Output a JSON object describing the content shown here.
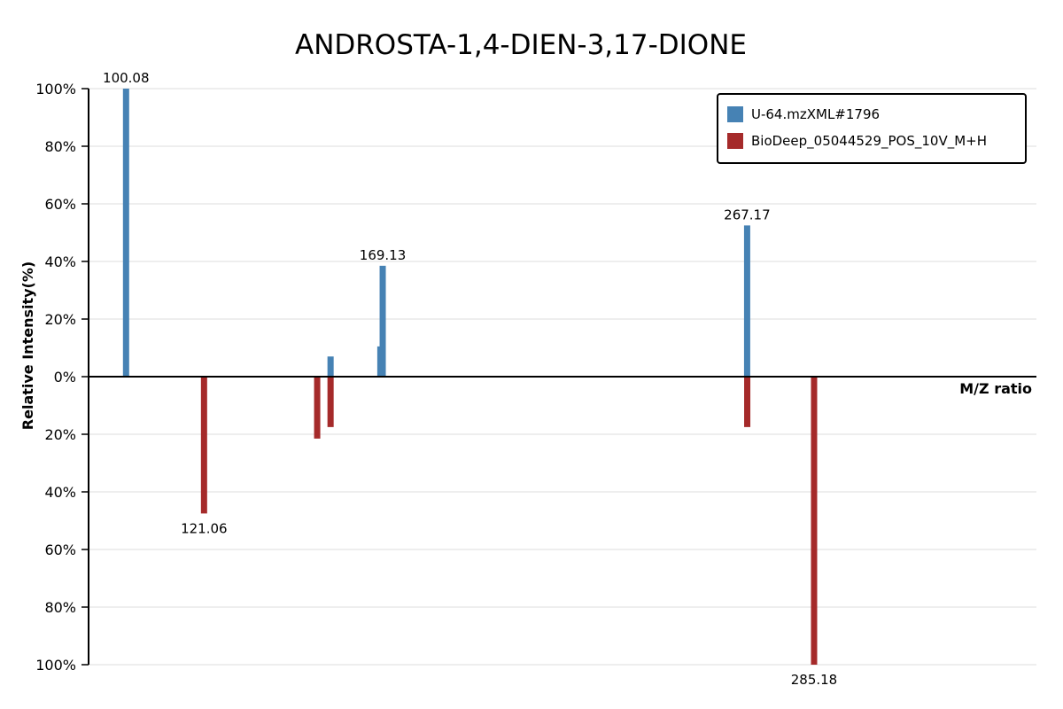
{
  "chart_data": {
    "type": "bar",
    "title": "ANDROSTA-1,4-DIEN-3,17-DIONE",
    "xlabel": "M/Z ratio",
    "ylabel": "Relative Intensity(%)",
    "xlim": [
      90,
      345
    ],
    "ylim": [
      -100,
      100
    ],
    "y_ticks": [
      {
        "value": 100,
        "label": "100%"
      },
      {
        "value": 80,
        "label": "80%"
      },
      {
        "value": 60,
        "label": "60%"
      },
      {
        "value": 40,
        "label": "40%"
      },
      {
        "value": 20,
        "label": "20%"
      },
      {
        "value": 0,
        "label": "0%"
      },
      {
        "value": -20,
        "label": "20%"
      },
      {
        "value": -40,
        "label": "40%"
      },
      {
        "value": -60,
        "label": "60%"
      },
      {
        "value": -80,
        "label": "80%"
      },
      {
        "value": -100,
        "label": "100%"
      }
    ],
    "grid": true,
    "legend_position": "top-right",
    "series": [
      {
        "name": "U-64.mzXML#1796",
        "color": "#4682b4",
        "direction": "up",
        "peaks": [
          {
            "mz": 100.08,
            "intensity": 100,
            "label": "100.08"
          },
          {
            "mz": 155.1,
            "intensity": 7,
            "label": ""
          },
          {
            "mz": 168.5,
            "intensity": 10.5,
            "label": ""
          },
          {
            "mz": 169.13,
            "intensity": 38.5,
            "label": "169.13"
          },
          {
            "mz": 267.17,
            "intensity": 52.5,
            "label": "267.17"
          }
        ]
      },
      {
        "name": "BioDeep_05044529_POS_10V_M+H",
        "color": "#a52a2a",
        "direction": "down",
        "peaks": [
          {
            "mz": 121.06,
            "intensity": 47.5,
            "label": "121.06"
          },
          {
            "mz": 151.5,
            "intensity": 21.5,
            "label": ""
          },
          {
            "mz": 155.1,
            "intensity": 17.5,
            "label": ""
          },
          {
            "mz": 267.2,
            "intensity": 17.5,
            "label": ""
          },
          {
            "mz": 285.18,
            "intensity": 100,
            "label": "285.18"
          }
        ]
      }
    ]
  }
}
